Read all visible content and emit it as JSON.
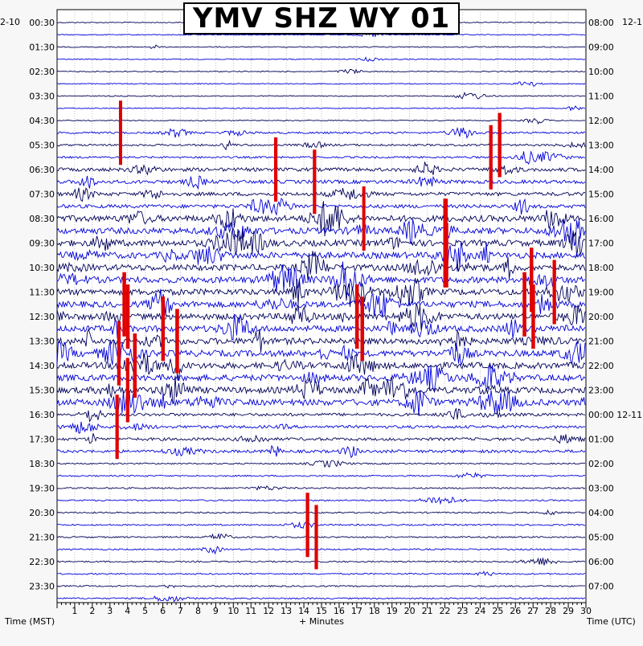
{
  "chart_data": {
    "type": "line",
    "title": "YMV SHZ WY 01",
    "xlabel": "+ Minutes",
    "left_axis_label": "Time (MST)",
    "right_axis_label": "Time (UTC)",
    "left_corner_date": "2-10",
    "right_corner_date": "12-1",
    "right_date_change_label": "00:00 12-11",
    "x_range": [
      0,
      30
    ],
    "x_ticks": [
      "1",
      "2",
      "3",
      "4",
      "5",
      "6",
      "7",
      "8",
      "9",
      "10",
      "11",
      "12",
      "13",
      "14",
      "15",
      "16",
      "17",
      "18",
      "19",
      "20",
      "21",
      "22",
      "23",
      "24",
      "25",
      "26",
      "27",
      "28",
      "29",
      "30"
    ],
    "left_time_labels": [
      "00:30",
      "01:30",
      "02:30",
      "03:30",
      "04:30",
      "05:30",
      "06:30",
      "07:30",
      "08:30",
      "09:30",
      "10:30",
      "11:30",
      "12:30",
      "13:30",
      "14:30",
      "15:30",
      "16:30",
      "17:30",
      "18:30",
      "19:30",
      "20:30",
      "21:30",
      "22:30",
      "23:30"
    ],
    "right_time_labels": [
      "08:00",
      "09:00",
      "10:00",
      "11:00",
      "12:00",
      "13:00",
      "14:00",
      "15:00",
      "16:00",
      "17:00",
      "18:00",
      "19:00",
      "20:00",
      "21:00",
      "22:00",
      "23:00",
      "00:00 12-11",
      "01:00",
      "02:00",
      "03:00",
      "04:00",
      "05:00",
      "06:00",
      "07:00"
    ],
    "trace_count": 48,
    "trace_colors": [
      "#00005a",
      "#0000d8"
    ],
    "clip_color": "#e00000",
    "grid": true
  }
}
